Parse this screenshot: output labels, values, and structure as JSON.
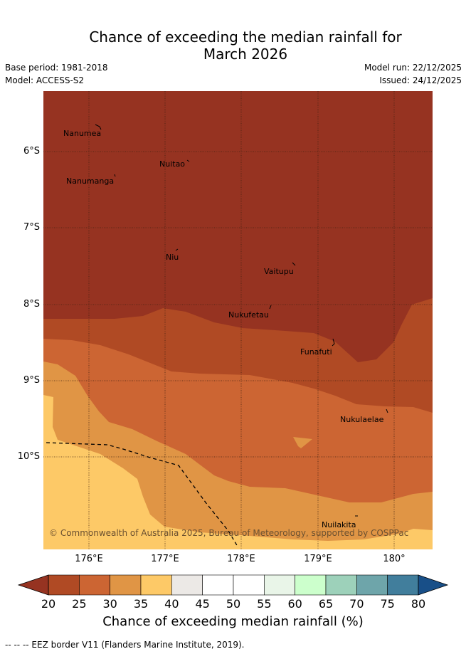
{
  "title_line1": "Chance of exceeding the median rainfall for",
  "title_line2": "March 2026",
  "base_period": "Base period: 1981-2018",
  "model": "Model: ACCESS-S2",
  "model_run": "Model run: 22/12/2025",
  "issued": "Issued: 24/12/2025",
  "lat_labels": [
    "6°S",
    "7°S",
    "8°S",
    "9°S",
    "10°S"
  ],
  "lon_labels": [
    "176°E",
    "177°E",
    "178°E",
    "179°E",
    "180°"
  ],
  "places": {
    "nanumea": "Nanumea",
    "nuitao": "Nuitao",
    "nanumanga": "Nanumanga",
    "niu": "Niu",
    "vaitupu": "Vaitupu",
    "nukufetau": "Nukufetau",
    "funafuti": "Funafuti",
    "nukulaelae": "Nukulaelae",
    "nuilakita": "Nuilakita"
  },
  "copyright": "© Commonwealth of Australia 2025, Bureau of Meteorology, supported by COSPPac",
  "colorbar": {
    "ticks": [
      "20",
      "25",
      "30",
      "35",
      "40",
      "45",
      "50",
      "55",
      "60",
      "65",
      "70",
      "75",
      "80"
    ],
    "label": "Chance of exceeding median rainfall (%)",
    "colors": [
      "#b04a24",
      "#cc6533",
      "#e09545",
      "#fdc967",
      "#ece9e6",
      "#ffffff",
      "#ffffff",
      "#e9f5e8",
      "#ccffcc",
      "#9dd1ba",
      "#6ea5aa",
      "#417e9c"
    ],
    "under_color": "#963321",
    "over_color": "#184f88"
  },
  "map_colors": {
    "below_20": "#963321",
    "c20_25": "#b04a24",
    "c25_30": "#cc6533",
    "c30_35": "#e09545",
    "c35_40": "#fdc967"
  },
  "footer": "-- -- -- EEZ border V11 (Flanders Marine Institute, 2019)."
}
